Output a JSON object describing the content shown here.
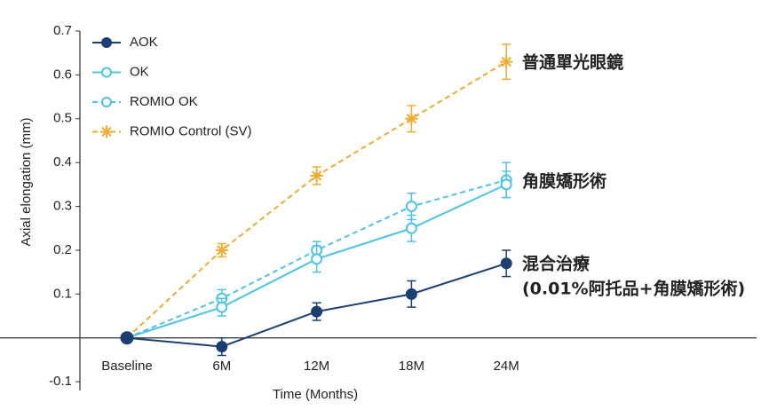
{
  "chart_data": {
    "type": "line",
    "x_label": "Time (Months)",
    "y_label": "Axial elongation (mm)",
    "categories": [
      "Baseline",
      "6M",
      "12M",
      "18M",
      "24M"
    ],
    "ylim": [
      -0.12,
      0.7
    ],
    "yticks": [
      -0.1,
      0.1,
      0.2,
      0.3,
      0.4,
      0.5,
      0.6,
      0.7
    ],
    "legend": "upper left",
    "series": [
      {
        "name": "AOK",
        "color": "#1b3f73",
        "line_style": "solid",
        "marker": "filled-circle",
        "values": [
          0,
          -0.02,
          0.06,
          0.1,
          0.17
        ],
        "errors": [
          0,
          0.02,
          0.02,
          0.03,
          0.03
        ]
      },
      {
        "name": "OK",
        "color": "#4cc3ea",
        "line_style": "solid",
        "marker": "open-circle",
        "values": [
          0,
          0.07,
          0.18,
          0.25,
          0.35
        ],
        "errors": [
          0,
          0.02,
          0.03,
          0.03,
          0.03
        ]
      },
      {
        "name": "ROMIO OK",
        "color": "#4cc3ea",
        "line_style": "dashed",
        "marker": "open-circle",
        "values": [
          0,
          0.09,
          0.2,
          0.3,
          0.36
        ],
        "errors": [
          0,
          0.02,
          0.02,
          0.03,
          0.04
        ]
      },
      {
        "name": "ROMIO Control (SV)",
        "color": "#f0ac2e",
        "line_style": "dashed",
        "marker": "asterisk",
        "values": [
          0,
          0.2,
          0.37,
          0.5,
          0.63
        ],
        "errors": [
          0,
          0.015,
          0.02,
          0.03,
          0.04
        ]
      }
    ],
    "annotations": [
      {
        "text": "普通單光眼鏡",
        "color": "#f0ac2e"
      },
      {
        "text": "角膜矯形術",
        "color": "#4cc3ea"
      },
      {
        "text": "混合治療",
        "color": "#1b3f73"
      },
      {
        "text": "(0.01%阿托品+角膜矯形術)",
        "color": "#1b3f73"
      }
    ]
  }
}
